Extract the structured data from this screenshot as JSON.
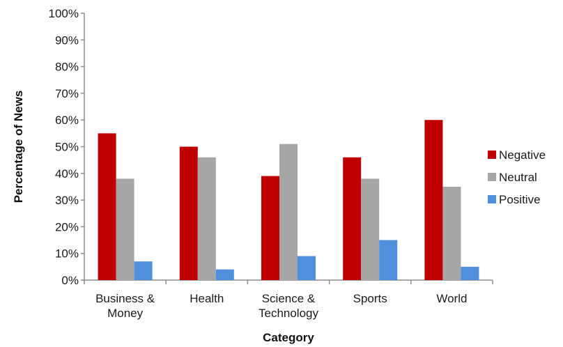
{
  "chart_data": {
    "type": "bar",
    "title": "",
    "xlabel": "Category",
    "ylabel": "Percentage of News",
    "ylim": [
      0,
      100
    ],
    "yticks": [
      "0%",
      "10%",
      "20%",
      "30%",
      "40%",
      "50%",
      "60%",
      "70%",
      "80%",
      "90%",
      "100%"
    ],
    "categories": [
      [
        "Business &",
        "Money"
      ],
      [
        "Health"
      ],
      [
        "Science &",
        "Technology"
      ],
      [
        "Sports"
      ],
      [
        "World"
      ]
    ],
    "series": [
      {
        "name": "Negative",
        "color": "#c00000",
        "values": [
          55,
          50,
          39,
          46,
          60
        ]
      },
      {
        "name": "Neutral",
        "color": "#a6a6a6",
        "values": [
          38,
          46,
          51,
          38,
          35
        ]
      },
      {
        "name": "Positive",
        "color": "#4f8fdc",
        "values": [
          7,
          4,
          9,
          15,
          5
        ]
      }
    ],
    "grid": false,
    "legend_position": "right"
  }
}
